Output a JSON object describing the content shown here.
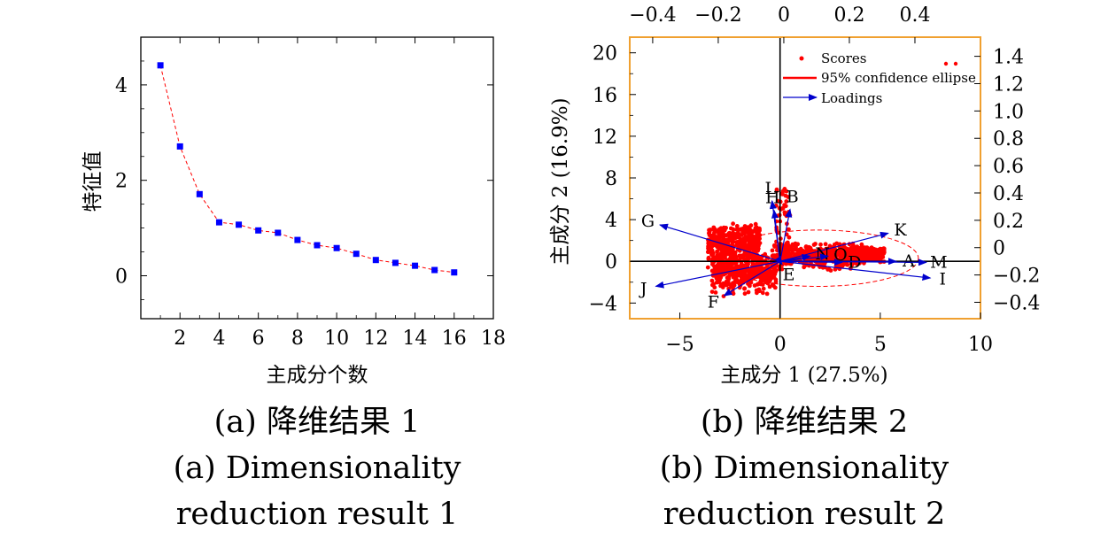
{
  "chart_data": [
    {
      "id": "scree",
      "type": "line",
      "title": "",
      "xlabel": "主成分个数",
      "ylabel": "特征值",
      "xlim": [
        0,
        18
      ],
      "ylim": [
        -0.9,
        5.0
      ],
      "xticks": [
        2,
        4,
        6,
        8,
        10,
        12,
        14,
        16,
        18
      ],
      "yticks": [
        0,
        2,
        4
      ],
      "grid": false,
      "series": [
        {
          "marker_color": "#0000ff",
          "line_color": "#ff0000",
          "line_style": "dashed",
          "x": [
            1,
            2,
            3,
            4,
            5,
            6,
            7,
            8,
            9,
            10,
            11,
            12,
            13,
            14,
            15,
            16
          ],
          "y": [
            4.41,
            2.71,
            1.71,
            1.12,
            1.07,
            0.95,
            0.9,
            0.75,
            0.64,
            0.58,
            0.46,
            0.33,
            0.27,
            0.21,
            0.12,
            0.07
          ]
        }
      ],
      "caption_cn": "(a) 降维结果 1",
      "caption_en": [
        "(a) Dimensionality",
        "reduction result 1"
      ]
    },
    {
      "id": "biplot",
      "type": "scatter",
      "title": "",
      "xlabel": "主成分 1 (27.5%)",
      "ylabel": "主成分 2 (16.9%)",
      "xlim": [
        -7.5,
        10
      ],
      "ylim": [
        -5.5,
        21.5
      ],
      "xticks": [
        -5,
        0,
        5,
        10
      ],
      "yticks": [
        -4,
        0,
        4,
        8,
        12,
        16,
        20
      ],
      "top_xlim": [
        -0.47,
        0.6
      ],
      "top_xticks": [
        -0.4,
        -0.2,
        0,
        0.2,
        0.4
      ],
      "top_xtick_labels": [
        "−0.4",
        "−0.2",
        "0",
        "0.2",
        "0.4"
      ],
      "right_ylim": [
        -0.52,
        1.54
      ],
      "right_yticks": [
        -0.4,
        -0.2,
        0,
        0.2,
        0.4,
        0.6,
        0.8,
        1.0,
        1.2,
        1.4
      ],
      "right_ytick_labels": [
        "−0.4",
        "−0.2",
        "0",
        "0.2",
        "0.4",
        "0.6",
        "0.8",
        "1.0",
        "1.2",
        "1.4"
      ],
      "grid": false,
      "legend": {
        "position": "top-right",
        "entries": [
          "Scores",
          "95% confidence ellipse",
          "Loadings"
        ]
      },
      "colors": {
        "scores": "#ff0000",
        "ellipse": "#ff0000",
        "loadings": "#0000cc",
        "frame": "#f0a030"
      },
      "ellipse": {
        "cx": 1.9,
        "cy": 0.3,
        "rx": 5.0,
        "ry": 2.7
      },
      "score_regions": [
        {
          "x": [
            -3.6,
            -1.0
          ],
          "y": [
            -1.0,
            3.7
          ]
        },
        {
          "x": [
            -3.4,
            -0.2
          ],
          "y": [
            -3.6,
            0.8
          ]
        },
        {
          "x": [
            -0.4,
            4.2
          ],
          "y": [
            -1.2,
            1.8
          ]
        },
        {
          "x": [
            3.0,
            5.2
          ],
          "y": [
            -0.3,
            1.4
          ]
        },
        {
          "x": [
            -0.2,
            0.5
          ],
          "y": [
            -0.8,
            7.0
          ]
        }
      ],
      "loadings": [
        {
          "label": "G",
          "x": -6.0,
          "y": 3.5
        },
        {
          "label": "L",
          "x": -0.4,
          "y": 5.8
        },
        {
          "label": "H",
          "x": -0.3,
          "y": 4.9
        },
        {
          "label": "B",
          "x": 0.5,
          "y": 5.0
        },
        {
          "label": "K",
          "x": 5.4,
          "y": 2.7
        },
        {
          "label": "N",
          "x": 1.5,
          "y": 0.5
        },
        {
          "label": "O",
          "x": 2.4,
          "y": 0.5
        },
        {
          "label": "D",
          "x": 3.1,
          "y": -0.1
        },
        {
          "label": "A",
          "x": 5.8,
          "y": 0.0
        },
        {
          "label": "M",
          "x": 7.3,
          "y": -0.1
        },
        {
          "label": "I",
          "x": 7.5,
          "y": -1.6
        },
        {
          "label": "J",
          "x": -6.2,
          "y": -2.4
        },
        {
          "label": "F",
          "x": -2.8,
          "y": -3.3
        },
        {
          "label": "E",
          "x": 0.1,
          "y": -0.3
        }
      ],
      "caption_cn": "(b) 降维结果 2",
      "caption_en": [
        "(b) Dimensionality",
        "reduction result 2"
      ]
    }
  ]
}
